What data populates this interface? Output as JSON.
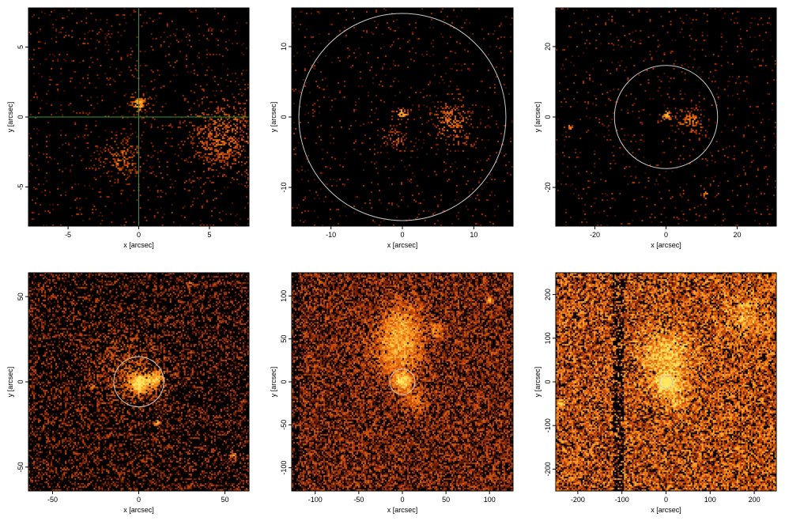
{
  "figure": {
    "colors": {
      "background": "#000000",
      "faint": "#5a1400",
      "mid": "#c0440a",
      "bright": "#ff8c1a",
      "hot": "#ffe860",
      "circle": "#c8c8c8",
      "crosshair": "#2f9a2f"
    }
  },
  "chart_data": [
    {
      "type": "heatmap",
      "xlabel": "x [arcsec]",
      "ylabel": "y [arcsec]",
      "xlim": [
        -7.8,
        7.8
      ],
      "ylim": [
        -7.8,
        7.8
      ],
      "xticks": [
        -5,
        0,
        5
      ],
      "yticks": [
        -5,
        0,
        5
      ],
      "density": 0.06,
      "level": 0.35,
      "overlay": "crosshair",
      "crosshair_center": [
        0,
        0
      ],
      "features": [
        {
          "x": 0,
          "y": 0.9,
          "r": 0.5,
          "amp": 1.0
        },
        {
          "x": 6,
          "y": -1.5,
          "r": 2.2,
          "amp": 0.5
        },
        {
          "x": -1.2,
          "y": -3.0,
          "r": 1.2,
          "amp": 0.5
        }
      ]
    },
    {
      "type": "heatmap",
      "xlabel": "x [arcsec]",
      "ylabel": "y [arcsec]",
      "xlim": [
        -15.5,
        15.5
      ],
      "ylim": [
        -15.5,
        15.5
      ],
      "xticks": [
        -10,
        0,
        10
      ],
      "yticks": [
        -10,
        0,
        10
      ],
      "density": 0.045,
      "level": 0.35,
      "overlay": "circle",
      "circle_center": [
        0,
        0
      ],
      "circle_radius": 14.5,
      "features": [
        {
          "x": 0,
          "y": 0.5,
          "r": 0.8,
          "amp": 1.0
        },
        {
          "x": 7,
          "y": -0.8,
          "r": 2.5,
          "amp": 0.6
        },
        {
          "x": -1,
          "y": -3,
          "r": 1.5,
          "amp": 0.4
        }
      ]
    },
    {
      "type": "heatmap",
      "xlabel": "x [arcsec]",
      "ylabel": "y [arcsec]",
      "xlim": [
        -31,
        31
      ],
      "ylim": [
        -31,
        31
      ],
      "xticks": [
        -20,
        0,
        20
      ],
      "yticks": [
        -20,
        0,
        20
      ],
      "density": 0.05,
      "level": 0.35,
      "overlay": "circle",
      "circle_center": [
        0,
        0
      ],
      "circle_radius": 14.5,
      "features": [
        {
          "x": 0,
          "y": 0.5,
          "r": 1.5,
          "amp": 1.0
        },
        {
          "x": 7,
          "y": -1,
          "r": 3,
          "amp": 0.7
        },
        {
          "x": 11,
          "y": -22,
          "r": 1,
          "amp": 0.8
        },
        {
          "x": -27,
          "y": -3,
          "r": 1,
          "amp": 0.8
        }
      ]
    },
    {
      "type": "heatmap",
      "xlabel": "x [arcsec]",
      "ylabel": "y [arcsec]",
      "xlim": [
        -64,
        64
      ],
      "ylim": [
        -64,
        64
      ],
      "xticks": [
        -50,
        0,
        50
      ],
      "yticks": [
        -50,
        0,
        50
      ],
      "density": 0.4,
      "level": 0.4,
      "overlay": "circle",
      "circle_center": [
        0,
        0
      ],
      "circle_radius": 14.5,
      "features": [
        {
          "x": 0,
          "y": -1,
          "r": 6,
          "amp": 1.0
        },
        {
          "x": 10,
          "y": 1,
          "r": 5,
          "amp": 0.8
        },
        {
          "x": -5,
          "y": 8,
          "r": 20,
          "amp": 0.3
        },
        {
          "x": 30,
          "y": 57,
          "r": 2,
          "amp": 0.7
        },
        {
          "x": -27,
          "y": -3,
          "r": 2,
          "amp": 0.7
        },
        {
          "x": 11,
          "y": -24,
          "r": 2,
          "amp": 0.7
        },
        {
          "x": 55,
          "y": -43,
          "r": 2,
          "amp": 0.7
        }
      ]
    },
    {
      "type": "heatmap",
      "xlabel": "x [arcsec]",
      "ylabel": "y [arcsec]",
      "xlim": [
        -127,
        127
      ],
      "ylim": [
        -127,
        127
      ],
      "xticks": [
        -100,
        -50,
        0,
        50,
        100
      ],
      "yticks": [
        -100,
        -50,
        0,
        50,
        100
      ],
      "density": 0.8,
      "level": 0.45,
      "overlay": "circle",
      "circle_center": [
        0,
        0
      ],
      "circle_radius": 14.5,
      "dark_band": {
        "x": -122,
        "width": 8
      },
      "features": [
        {
          "x": 0,
          "y": 0,
          "r": 9,
          "amp": 1.0
        },
        {
          "x": -5,
          "y": 35,
          "r": 30,
          "amp": 0.6
        },
        {
          "x": 0,
          "y": 70,
          "r": 25,
          "amp": 0.45
        },
        {
          "x": 15,
          "y": -20,
          "r": 15,
          "amp": 0.4
        },
        {
          "x": 100,
          "y": 95,
          "r": 3,
          "amp": 0.8
        },
        {
          "x": 40,
          "y": 60,
          "r": 8,
          "amp": 0.5
        }
      ]
    },
    {
      "type": "heatmap",
      "xlabel": "x [arcsec]",
      "ylabel": "y [arcsec]",
      "xlim": [
        -250,
        250
      ],
      "ylim": [
        -250,
        250
      ],
      "xticks": [
        -200,
        -100,
        0,
        100,
        200
      ],
      "yticks": [
        -200,
        -100,
        0,
        100,
        200
      ],
      "density": 1.0,
      "level": 0.62,
      "overlay": "circle",
      "circle_center": [
        0,
        0
      ],
      "circle_radius": 14.5,
      "dark_band": {
        "x": -108,
        "width": 24
      },
      "features": [
        {
          "x": 0,
          "y": 0,
          "r": 18,
          "amp": 1.0
        },
        {
          "x": 0,
          "y": 60,
          "r": 55,
          "amp": 0.55
        },
        {
          "x": 15,
          "y": -30,
          "r": 35,
          "amp": 0.4
        },
        {
          "x": 180,
          "y": 150,
          "r": 50,
          "amp": 0.3
        },
        {
          "x": -240,
          "y": -50,
          "r": 10,
          "amp": 0.6
        }
      ]
    }
  ]
}
